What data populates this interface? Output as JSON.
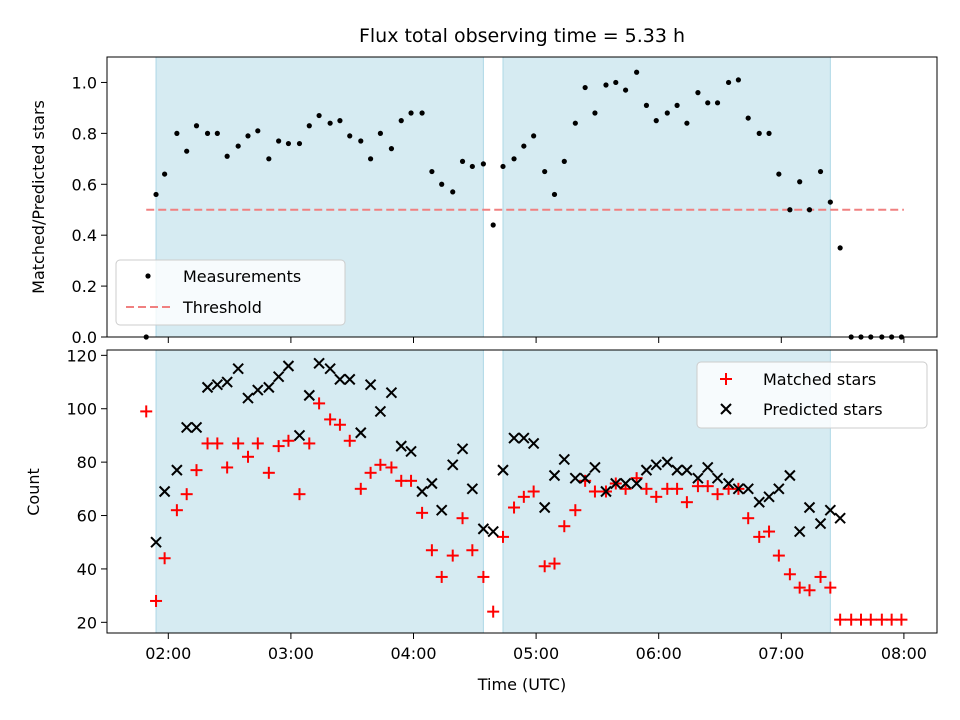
{
  "title": "Flux total observing time = 5.33 h",
  "xlabel": "Time (UTC)",
  "x_ticks": [
    "02:00",
    "03:00",
    "04:00",
    "05:00",
    "06:00",
    "07:00",
    "08:00"
  ],
  "x_tick_hours": [
    2,
    3,
    4,
    5,
    6,
    7,
    8
  ],
  "xlim": [
    1.5,
    8.27
  ],
  "observing_windows": [
    [
      1.9,
      4.57
    ],
    [
      4.73,
      7.4
    ]
  ],
  "colors": {
    "window": "#add8e6",
    "measurement": "#000000",
    "threshold": "#f08080",
    "matched": "#ff0000",
    "predicted": "#000000"
  },
  "chart_data": [
    {
      "type": "scatter",
      "ylabel": "Matched/Predicted stars",
      "ylim": [
        0,
        1.1
      ],
      "y_ticks": [
        "0.0",
        "0.2",
        "0.4",
        "0.6",
        "0.8",
        "1.0"
      ],
      "y_tick_values": [
        0,
        0.2,
        0.4,
        0.6,
        0.8,
        1.0
      ],
      "legend": {
        "placement": "lower-left",
        "entries": [
          "Measurements",
          "Threshold"
        ]
      },
      "threshold": {
        "name": "Threshold",
        "y": 0.5,
        "x_range": [
          1.82,
          8.0
        ]
      },
      "series": [
        {
          "name": "Measurements",
          "x": [
            1.82,
            1.9,
            1.97,
            2.07,
            2.15,
            2.23,
            2.32,
            2.4,
            2.48,
            2.57,
            2.65,
            2.73,
            2.82,
            2.9,
            2.98,
            3.07,
            3.15,
            3.23,
            3.32,
            3.4,
            3.48,
            3.57,
            3.65,
            3.73,
            3.82,
            3.9,
            3.98,
            4.07,
            4.15,
            4.23,
            4.32,
            4.4,
            4.48,
            4.57,
            4.65,
            4.73,
            4.82,
            4.9,
            4.98,
            5.07,
            5.15,
            5.23,
            5.32,
            5.4,
            5.48,
            5.57,
            5.65,
            5.73,
            5.82,
            5.9,
            5.98,
            6.07,
            6.15,
            6.23,
            6.32,
            6.4,
            6.48,
            6.57,
            6.65,
            6.73,
            6.82,
            6.9,
            6.98,
            7.07,
            7.15,
            7.23,
            7.32,
            7.4,
            7.48,
            7.57,
            7.65,
            7.73,
            7.82,
            7.9,
            7.98
          ],
          "y": [
            0,
            0.56,
            0.64,
            0.8,
            0.73,
            0.83,
            0.8,
            0.8,
            0.71,
            0.75,
            0.79,
            0.81,
            0.7,
            0.77,
            0.76,
            0.76,
            0.83,
            0.87,
            0.84,
            0.85,
            0.79,
            0.77,
            0.7,
            0.8,
            0.74,
            0.85,
            0.88,
            0.88,
            0.65,
            0.6,
            0.57,
            0.69,
            0.67,
            0.68,
            0.44,
            0.67,
            0.7,
            0.75,
            0.79,
            0.65,
            0.56,
            0.69,
            0.84,
            0.98,
            0.88,
            0.99,
            1.0,
            0.97,
            1.04,
            0.91,
            0.85,
            0.88,
            0.91,
            0.84,
            0.96,
            0.92,
            0.92,
            1.0,
            1.01,
            0.86,
            0.8,
            0.8,
            0.64,
            0.5,
            0.61,
            0.5,
            0.65,
            0.53,
            0.35,
            0,
            0,
            0,
            0,
            0,
            0
          ]
        }
      ]
    },
    {
      "type": "scatter",
      "ylabel": "Count",
      "ylim": [
        16,
        122
      ],
      "y_ticks": [
        "20",
        "40",
        "60",
        "80",
        "100",
        "120"
      ],
      "y_tick_values": [
        20,
        40,
        60,
        80,
        100,
        120
      ],
      "legend": {
        "placement": "upper-right",
        "entries": [
          "Matched stars",
          "Predicted stars"
        ]
      },
      "series": [
        {
          "name": "Matched stars",
          "x": [
            1.82,
            1.9,
            1.97,
            2.07,
            2.15,
            2.23,
            2.32,
            2.4,
            2.48,
            2.57,
            2.65,
            2.73,
            2.82,
            2.9,
            2.98,
            3.07,
            3.15,
            3.23,
            3.32,
            3.4,
            3.48,
            3.57,
            3.65,
            3.73,
            3.82,
            3.9,
            3.98,
            4.07,
            4.15,
            4.23,
            4.32,
            4.4,
            4.48,
            4.57,
            4.65,
            4.73,
            4.82,
            4.9,
            4.98,
            5.07,
            5.15,
            5.23,
            5.32,
            5.4,
            5.48,
            5.57,
            5.65,
            5.73,
            5.82,
            5.9,
            5.98,
            6.07,
            6.15,
            6.23,
            6.32,
            6.4,
            6.48,
            6.57,
            6.65,
            6.73,
            6.82,
            6.9,
            6.98,
            7.07,
            7.15,
            7.23,
            7.32,
            7.4,
            7.48,
            7.57,
            7.65,
            7.73,
            7.82,
            7.9,
            7.98
          ],
          "y": [
            99,
            28,
            44,
            62,
            68,
            77,
            87,
            87,
            78,
            87,
            82,
            87,
            76,
            86,
            88,
            68,
            87,
            102,
            96,
            94,
            88,
            70,
            76,
            79,
            78,
            73,
            73,
            61,
            47,
            37,
            45,
            59,
            47,
            37,
            24,
            52,
            63,
            67,
            69,
            41,
            42,
            56,
            62,
            73,
            69,
            69,
            72,
            70,
            74,
            70,
            67,
            70,
            70,
            65,
            71,
            71,
            68,
            70,
            70,
            59,
            52,
            54,
            45,
            38,
            33,
            32,
            37,
            33,
            21,
            21,
            21,
            21,
            21,
            21,
            21
          ]
        },
        {
          "name": "Predicted stars",
          "x": [
            1.9,
            1.97,
            2.07,
            2.15,
            2.23,
            2.32,
            2.4,
            2.48,
            2.57,
            2.65,
            2.73,
            2.82,
            2.9,
            2.98,
            3.07,
            3.15,
            3.23,
            3.32,
            3.4,
            3.48,
            3.57,
            3.65,
            3.73,
            3.82,
            3.9,
            3.98,
            4.07,
            4.15,
            4.23,
            4.32,
            4.4,
            4.48,
            4.57,
            4.65,
            4.73,
            4.82,
            4.9,
            4.98,
            5.07,
            5.15,
            5.23,
            5.32,
            5.4,
            5.48,
            5.57,
            5.65,
            5.73,
            5.82,
            5.9,
            5.98,
            6.07,
            6.15,
            6.23,
            6.32,
            6.4,
            6.48,
            6.57,
            6.65,
            6.73,
            6.82,
            6.9,
            6.98,
            7.07,
            7.15,
            7.23,
            7.32,
            7.4,
            7.48
          ],
          "y": [
            50,
            69,
            77,
            93,
            93,
            108,
            109,
            110,
            115,
            104,
            107,
            108,
            112,
            116,
            90,
            105,
            117,
            115,
            111,
            111,
            91,
            109,
            99,
            106,
            86,
            84,
            69,
            72,
            62,
            79,
            85,
            70,
            55,
            54,
            77,
            89,
            89,
            87,
            63,
            75,
            81,
            74,
            74,
            78,
            69,
            72,
            72,
            72,
            77,
            79,
            80,
            77,
            77,
            74,
            78,
            74,
            72,
            70,
            70,
            65,
            67,
            70,
            75,
            54,
            63,
            57,
            62,
            59
          ]
        }
      ]
    }
  ]
}
